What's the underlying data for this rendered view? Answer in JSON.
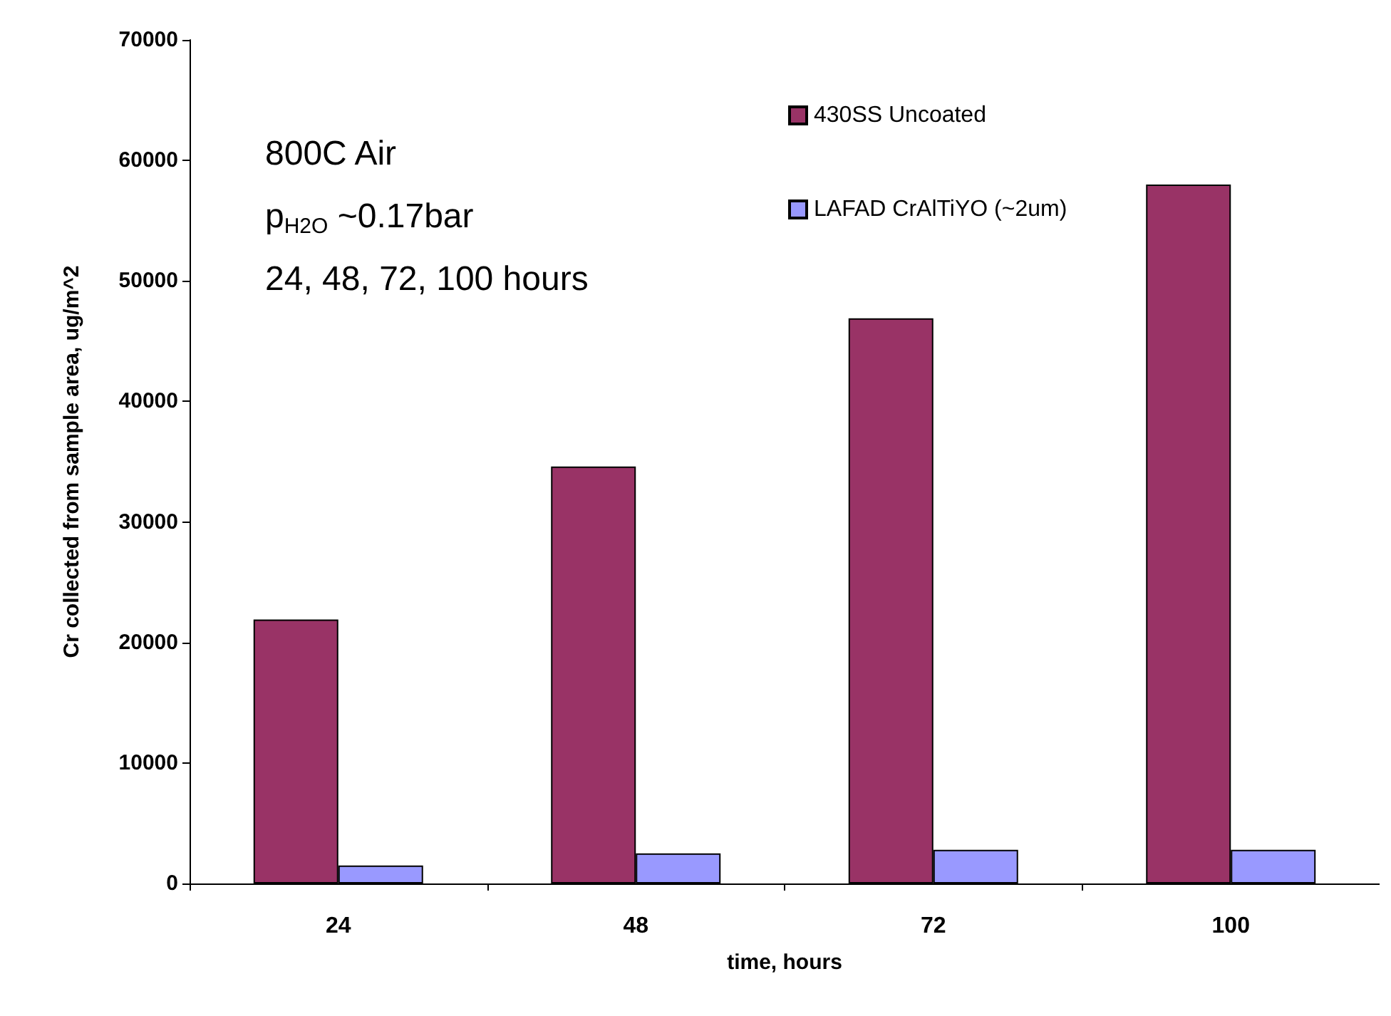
{
  "chart_data": {
    "type": "bar",
    "xlabel": "time, hours",
    "ylabel": "Cr collected from sample area, ug/m^2",
    "categories": [
      "24",
      "48",
      "72",
      "100"
    ],
    "series": [
      {
        "name": "430SS Uncoated",
        "color": "#993366",
        "values": [
          21900,
          34600,
          46900,
          58000
        ]
      },
      {
        "name": "LAFAD CrAlTiYO (~2um)",
        "color": "#9999ff",
        "values": [
          1500,
          2500,
          2800,
          2800
        ]
      }
    ],
    "ylim": [
      0,
      70000
    ],
    "yticks": [
      0,
      10000,
      20000,
      30000,
      40000,
      50000,
      60000,
      70000
    ],
    "grid": false,
    "legend": "top right",
    "annotations": [
      "800C Air",
      "p$_{H2O}$ ~0.17bar",
      "24, 48, 72, 100 hours"
    ]
  }
}
